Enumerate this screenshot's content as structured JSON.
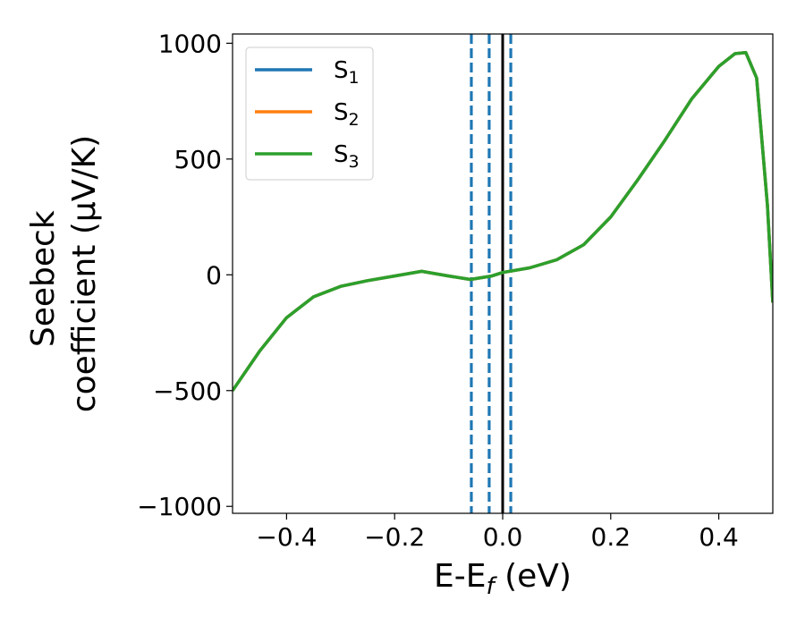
{
  "chart_data": {
    "type": "line",
    "xlabel": {
      "main": "E-E",
      "sub": "f",
      "tail": " (eV)"
    },
    "ylabel": {
      "line1": "Seebeck",
      "line2": "coefficient  (μV/K)"
    },
    "xlim": [
      -0.5,
      0.5
    ],
    "ylim": [
      -1030,
      1040
    ],
    "xticks": [
      -0.4,
      -0.2,
      0.0,
      0.2,
      0.4
    ],
    "xtick_labels": [
      "−0.4",
      "−0.2",
      "0.0",
      "0.2",
      "0.4"
    ],
    "yticks": [
      -1000,
      -500,
      0,
      500,
      1000
    ],
    "ytick_labels": [
      "−1000",
      "−500",
      "0",
      "500",
      "1000"
    ],
    "grid": false,
    "legend_placement": "upper-left",
    "series": [
      {
        "name": "S",
        "sub": "1",
        "color": "#1f77b4",
        "x": [
          -0.5,
          -0.45,
          -0.4,
          -0.35,
          -0.3,
          -0.25,
          -0.2,
          -0.15,
          -0.1,
          -0.06,
          -0.02,
          0.0,
          0.05,
          0.1,
          0.15,
          0.2,
          0.25,
          0.3,
          0.35,
          0.4,
          0.43,
          0.45,
          0.47,
          0.49,
          0.5
        ],
        "y": [
          -500,
          -330,
          -185,
          -95,
          -50,
          -25,
          -5,
          15,
          -5,
          -20,
          -5,
          10,
          30,
          65,
          130,
          250,
          410,
          580,
          760,
          900,
          955,
          960,
          850,
          300,
          -120
        ]
      },
      {
        "name": "S",
        "sub": "2",
        "color": "#ff7f0e",
        "x": [
          -0.5,
          -0.45,
          -0.4,
          -0.35,
          -0.3,
          -0.25,
          -0.2,
          -0.15,
          -0.1,
          -0.06,
          -0.02,
          0.0,
          0.05,
          0.1,
          0.15,
          0.2,
          0.25,
          0.3,
          0.35,
          0.4,
          0.43,
          0.45,
          0.47,
          0.49,
          0.5
        ],
        "y": [
          -500,
          -330,
          -185,
          -95,
          -50,
          -25,
          -5,
          15,
          -5,
          -20,
          -5,
          10,
          30,
          65,
          130,
          250,
          410,
          580,
          760,
          900,
          955,
          960,
          850,
          300,
          -120
        ]
      },
      {
        "name": "S",
        "sub": "3",
        "color": "#2ca02c",
        "x": [
          -0.5,
          -0.45,
          -0.4,
          -0.35,
          -0.3,
          -0.25,
          -0.2,
          -0.15,
          -0.1,
          -0.06,
          -0.02,
          0.0,
          0.05,
          0.1,
          0.15,
          0.2,
          0.25,
          0.3,
          0.35,
          0.4,
          0.43,
          0.45,
          0.47,
          0.49,
          0.5
        ],
        "y": [
          -500,
          -330,
          -185,
          -95,
          -50,
          -25,
          -5,
          15,
          -5,
          -20,
          -5,
          10,
          30,
          65,
          130,
          250,
          410,
          580,
          760,
          900,
          955,
          960,
          850,
          300,
          -120
        ]
      }
    ],
    "vlines": [
      {
        "x": -0.058,
        "style": "dashed",
        "color": "#1f77b4"
      },
      {
        "x": -0.025,
        "style": "dashed",
        "color": "#1f77b4"
      },
      {
        "x": 0.0,
        "style": "solid",
        "color": "#000000"
      },
      {
        "x": 0.015,
        "style": "dashed",
        "color": "#1f77b4"
      }
    ]
  }
}
